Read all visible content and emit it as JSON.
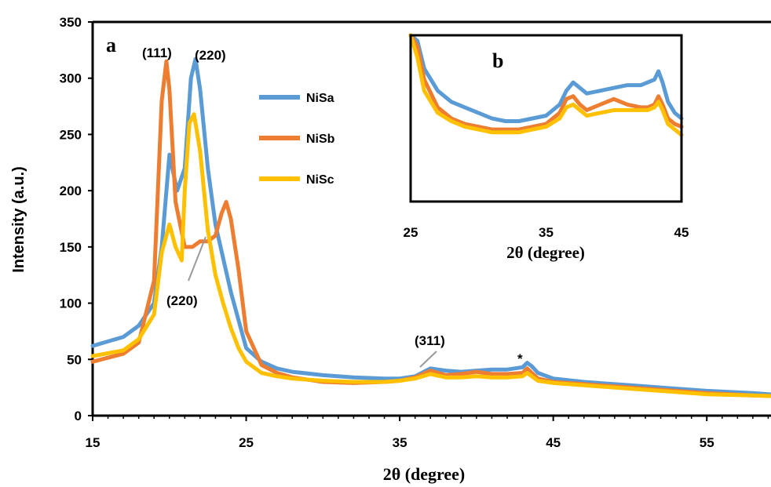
{
  "chart_data": [
    {
      "panel": "a",
      "type": "line",
      "xlabel": "2θ (degree)",
      "ylabel": "Intensity (a.u.)",
      "xlim": [
        15,
        60
      ],
      "ylim": [
        0,
        350
      ],
      "xticks": [
        "15",
        "25",
        "35",
        "45",
        "55"
      ],
      "yticks": [
        "0",
        "50",
        "100",
        "150",
        "200",
        "250",
        "300",
        "350"
      ],
      "legend_position": "upper-left-center",
      "series": [
        {
          "name": "NiSa",
          "color": "#5B9BD5",
          "x": [
            15,
            17,
            18,
            19,
            19.5,
            20,
            20.5,
            21,
            21.4,
            21.7,
            22,
            22.5,
            23,
            23.5,
            24,
            24.5,
            25,
            26,
            27,
            28,
            30,
            32,
            34,
            35,
            36,
            37,
            38,
            39,
            40,
            41,
            42,
            43,
            43.3,
            43.6,
            44,
            45,
            47,
            50,
            53,
            55,
            58,
            60
          ],
          "y": [
            62,
            70,
            80,
            100,
            150,
            232,
            200,
            220,
            300,
            317,
            290,
            220,
            170,
            140,
            110,
            85,
            60,
            48,
            42,
            39,
            36,
            34,
            33,
            33,
            35,
            42,
            40,
            39,
            40,
            41,
            41,
            43,
            47,
            44,
            38,
            33,
            30,
            27,
            24,
            22,
            20,
            18
          ]
        },
        {
          "name": "NiSb",
          "color": "#ED7D31",
          "x": [
            15,
            17,
            18,
            19,
            19.5,
            19.8,
            20,
            20.4,
            21,
            21.5,
            22,
            22.5,
            23,
            23.4,
            23.7,
            24,
            24.5,
            25,
            26,
            27,
            28,
            30,
            32,
            34,
            35,
            36,
            37,
            38,
            39,
            40,
            41,
            42,
            43,
            43.3,
            43.6,
            44,
            45,
            47,
            50,
            53,
            55,
            58,
            60
          ],
          "y": [
            48,
            55,
            65,
            120,
            280,
            315,
            290,
            190,
            150,
            150,
            155,
            155,
            160,
            180,
            190,
            175,
            130,
            75,
            45,
            38,
            34,
            30,
            29,
            30,
            31,
            34,
            40,
            36,
            37,
            39,
            37,
            37,
            38,
            42,
            38,
            33,
            30,
            28,
            25,
            22,
            20,
            18,
            17
          ]
        },
        {
          "name": "NiSc",
          "color": "#FFC000",
          "x": [
            15,
            17,
            18,
            19,
            19.5,
            20,
            20.4,
            20.8,
            21,
            21.3,
            21.6,
            22,
            22.5,
            23,
            23.5,
            24,
            24.5,
            25,
            26,
            27,
            28,
            30,
            32,
            34,
            35,
            36,
            37,
            38,
            39,
            40,
            41,
            42,
            43,
            43.3,
            43.6,
            44,
            45,
            47,
            50,
            53,
            55,
            58,
            60
          ],
          "y": [
            53,
            58,
            68,
            90,
            145,
            170,
            150,
            138,
            200,
            260,
            268,
            235,
            165,
            125,
            100,
            78,
            60,
            48,
            38,
            35,
            33,
            31,
            30,
            30,
            31,
            33,
            37,
            34,
            34,
            35,
            34,
            34,
            35,
            38,
            35,
            31,
            29,
            27,
            24,
            21,
            19,
            18,
            17
          ]
        }
      ],
      "annotations": [
        "(111)",
        "(220)",
        "(220)",
        "(311)",
        "*"
      ]
    },
    {
      "panel": "b",
      "type": "line",
      "xlabel": "2θ (degree)",
      "xlim": [
        25,
        45
      ],
      "ylim": [
        20,
        50
      ],
      "xticks": [
        "25",
        "35",
        "45"
      ],
      "series": [
        {
          "name": "NiSa",
          "color": "#5B9BD5",
          "x": [
            25,
            25.5,
            26,
            27,
            28,
            29,
            30,
            31,
            32,
            33,
            34,
            35,
            36,
            36.5,
            37,
            37.5,
            38,
            39,
            40,
            41,
            42,
            42.5,
            43,
            43.3,
            43.6,
            44,
            44.5,
            45
          ],
          "y": [
            50,
            49,
            44,
            40,
            38,
            37,
            36,
            35,
            34.5,
            34.5,
            35,
            35.5,
            37.5,
            40,
            41.5,
            40.5,
            39.5,
            40,
            40.5,
            41,
            41,
            41.5,
            42,
            43.5,
            41.5,
            38,
            36,
            35
          ]
        },
        {
          "name": "NiSb",
          "color": "#ED7D31",
          "x": [
            25,
            25.5,
            26,
            27,
            28,
            29,
            30,
            31,
            32,
            33,
            34,
            35,
            36,
            36.5,
            37,
            37.5,
            38,
            39,
            40,
            41,
            42,
            42.5,
            43,
            43.3,
            43.6,
            44,
            44.5,
            45
          ],
          "y": [
            50,
            48,
            42,
            37,
            35,
            34,
            33.5,
            33,
            33,
            33,
            33.5,
            34,
            36,
            38.5,
            39,
            37.5,
            36.5,
            37.5,
            38.5,
            37.5,
            37,
            37,
            37.5,
            39,
            37.5,
            35,
            34,
            33.5
          ]
        },
        {
          "name": "NiSc",
          "color": "#FFC000",
          "x": [
            25,
            25.5,
            26,
            27,
            28,
            29,
            30,
            31,
            32,
            33,
            34,
            35,
            36,
            36.5,
            37,
            37.5,
            38,
            39,
            40,
            41,
            42,
            42.5,
            43,
            43.3,
            43.6,
            44,
            44.5,
            45
          ],
          "y": [
            50,
            46,
            40,
            36,
            34.5,
            33.5,
            33,
            32.5,
            32.5,
            32.5,
            33,
            33.5,
            35,
            37,
            37.5,
            36.5,
            35.5,
            36,
            36.5,
            36.5,
            36.5,
            36.5,
            37,
            38,
            36.5,
            34,
            33,
            32
          ]
        }
      ]
    }
  ],
  "labels": {
    "panel_a": "a",
    "panel_b": "b",
    "ann_111": "(111)",
    "ann_220_top": "(220)",
    "ann_220_low": "(220)",
    "ann_311": "(311)",
    "ann_star": "*"
  }
}
